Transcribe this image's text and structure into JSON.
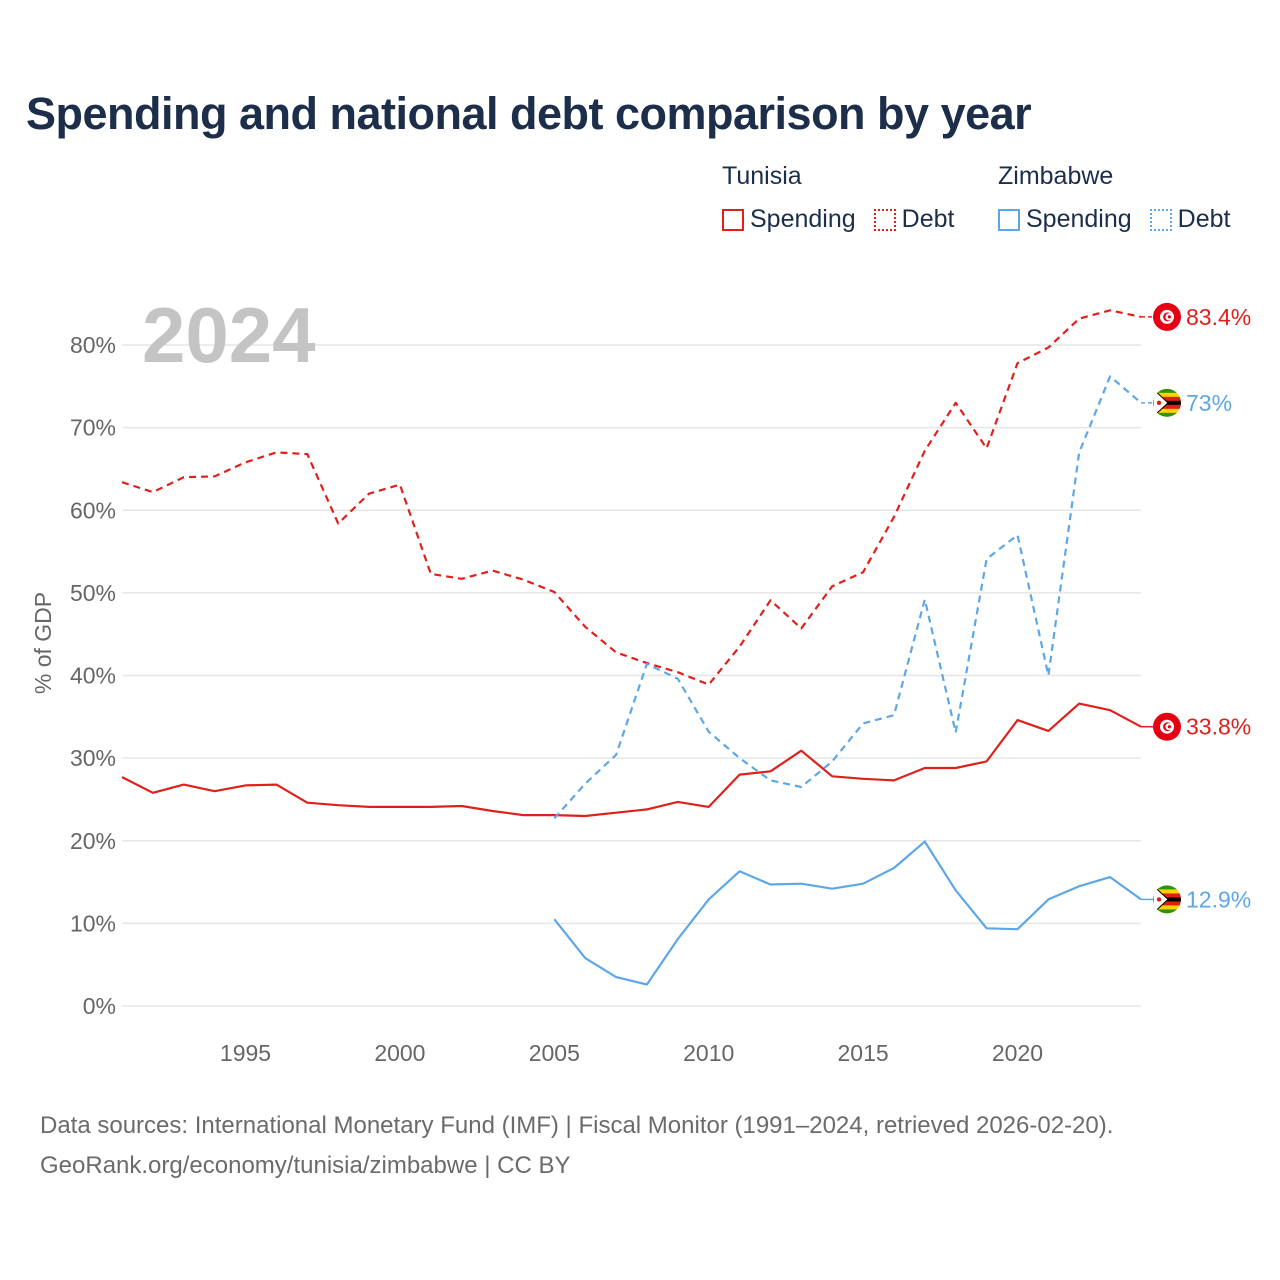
{
  "title": "Spending and national debt comparison by year",
  "legend": {
    "tunisia": {
      "country": "Tunisia",
      "spending": "Spending",
      "debt": "Debt"
    },
    "zimbabwe": {
      "country": "Zimbabwe",
      "spending": "Spending",
      "debt": "Debt"
    }
  },
  "footer": {
    "line1": "Data sources: International Monetary Fund (IMF) | Fiscal Monitor (1991–2024, retrieved 2026-02-20).",
    "line2": "GeoRank.org/economy/tunisia/zimbabwe | CC BY"
  },
  "colors": {
    "tunisia": "#e0201b",
    "zimbabwe": "#5ea7e6",
    "grid": "#e6e6e6"
  },
  "chart_data": {
    "type": "line",
    "title": "Spending and national debt comparison by year",
    "year_label": "2024",
    "ylabel": "% of GDP",
    "xlabel": "",
    "xlim": [
      1991,
      2024
    ],
    "ylim": [
      0,
      85
    ],
    "x_ticks": [
      1995,
      2000,
      2005,
      2010,
      2015,
      2020
    ],
    "y_ticks": [
      0,
      10,
      20,
      30,
      40,
      50,
      60,
      70,
      80
    ],
    "y_tick_labels": [
      "0%",
      "10%",
      "20%",
      "30%",
      "40%",
      "50%",
      "60%",
      "70%",
      "80%"
    ],
    "grid": true,
    "series": [
      {
        "name": "Tunisia Debt",
        "country": "tunisia",
        "style": "dashed",
        "x": [
          1991,
          1992,
          1993,
          1994,
          1995,
          1996,
          1997,
          1998,
          1999,
          2000,
          2001,
          2002,
          2003,
          2004,
          2005,
          2006,
          2007,
          2008,
          2009,
          2010,
          2011,
          2012,
          2013,
          2014,
          2015,
          2016,
          2017,
          2018,
          2019,
          2020,
          2021,
          2022,
          2023,
          2024
        ],
        "values": [
          63.4,
          62.2,
          64.0,
          64.1,
          65.8,
          67.0,
          66.8,
          58.4,
          62.0,
          63.1,
          52.3,
          51.7,
          52.7,
          51.6,
          50.1,
          45.9,
          42.8,
          41.5,
          40.4,
          38.9,
          43.5,
          49.1,
          45.7,
          50.8,
          52.5,
          59.2,
          67.2,
          73.0,
          67.5,
          77.8,
          79.7,
          83.2,
          84.2,
          83.4
        ],
        "end_label": "83.4%"
      },
      {
        "name": "Tunisia Spending",
        "country": "tunisia",
        "style": "solid",
        "x": [
          1991,
          1992,
          1993,
          1994,
          1995,
          1996,
          1997,
          1998,
          1999,
          2000,
          2001,
          2002,
          2003,
          2004,
          2005,
          2006,
          2007,
          2008,
          2009,
          2010,
          2011,
          2012,
          2013,
          2014,
          2015,
          2016,
          2017,
          2018,
          2019,
          2020,
          2021,
          2022,
          2023,
          2024
        ],
        "values": [
          27.7,
          25.8,
          26.8,
          26.0,
          26.7,
          26.8,
          24.6,
          24.3,
          24.1,
          24.1,
          24.1,
          24.2,
          23.6,
          23.1,
          23.1,
          23.0,
          23.4,
          23.8,
          24.7,
          24.1,
          28.0,
          28.4,
          30.9,
          27.8,
          27.5,
          27.3,
          28.8,
          28.8,
          29.6,
          34.6,
          33.3,
          36.6,
          35.8,
          33.8
        ],
        "end_label": "33.8%"
      },
      {
        "name": "Zimbabwe Debt",
        "country": "zimbabwe",
        "style": "dashed",
        "x": [
          2005,
          2006,
          2007,
          2008,
          2009,
          2010,
          2011,
          2012,
          2013,
          2014,
          2015,
          2016,
          2017,
          2018,
          2019,
          2020,
          2021,
          2022,
          2023,
          2024
        ],
        "values": [
          22.7,
          26.9,
          30.4,
          41.4,
          39.6,
          33.2,
          30.0,
          27.3,
          26.5,
          29.6,
          34.2,
          35.2,
          49.2,
          33.1,
          54.1,
          57.0,
          40.0,
          67.0,
          76.2,
          73.0
        ],
        "end_label": "73%"
      },
      {
        "name": "Zimbabwe Spending",
        "country": "zimbabwe",
        "style": "solid",
        "x": [
          2005,
          2006,
          2007,
          2008,
          2009,
          2010,
          2011,
          2012,
          2013,
          2014,
          2015,
          2016,
          2017,
          2018,
          2019,
          2020,
          2021,
          2022,
          2023,
          2024
        ],
        "values": [
          10.5,
          5.8,
          3.5,
          2.6,
          8.1,
          12.9,
          16.3,
          14.7,
          14.8,
          14.2,
          14.8,
          16.7,
          19.9,
          14.0,
          9.4,
          9.3,
          12.9,
          14.5,
          15.6,
          12.9
        ],
        "end_label": "12.9%"
      }
    ]
  }
}
